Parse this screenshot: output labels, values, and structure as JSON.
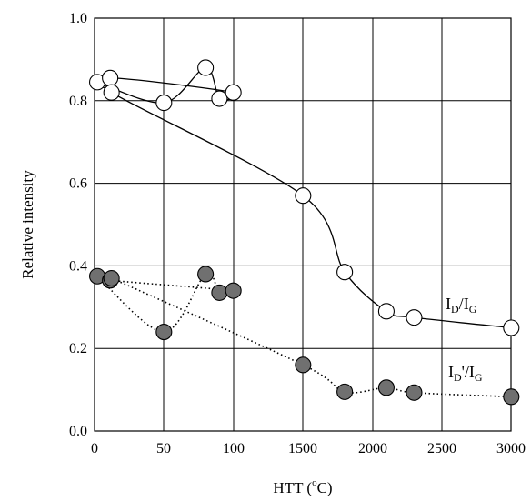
{
  "chart_data": {
    "type": "line",
    "title": "",
    "xlabel": {
      "main": "HTT (",
      "sup": "o",
      "tail": "C)"
    },
    "ylabel": "Relative intensity",
    "ylim": [
      0.0,
      1.0
    ],
    "yticks": [
      "0.0",
      "0.2",
      "0.4",
      "0.6",
      "0.8",
      "1.0"
    ],
    "xtick_labels": [
      "0",
      "50",
      "100",
      "1500",
      "2000",
      "2500",
      "3000"
    ],
    "grid": true,
    "x_scale": "broken: 0–100 then 1000–3000",
    "series": [
      {
        "name": "ID/IG",
        "label": {
          "a": "I",
          "a_sub": "D",
          "slash": "/",
          "b": "I",
          "b_sub": "G"
        },
        "marker": "open-circle",
        "line": "solid",
        "marker_fill": "#ffffff",
        "points": [
          {
            "x": 2,
            "y": 0.845
          },
          {
            "x": 50,
            "y": 0.795
          },
          {
            "x": 80,
            "y": 0.88
          },
          {
            "x": 90,
            "y": 0.805
          },
          {
            "x": 100,
            "y": 0.82
          },
          {
            "x": 110,
            "y": 0.855
          },
          {
            "x": 120,
            "y": 0.82
          },
          {
            "x": 1500,
            "y": 0.57
          },
          {
            "x": 1800,
            "y": 0.385
          },
          {
            "x": 2100,
            "y": 0.29
          },
          {
            "x": 2300,
            "y": 0.275
          },
          {
            "x": 3000,
            "y": 0.25
          }
        ]
      },
      {
        "name": "ID'/IG",
        "label": {
          "a": "I",
          "a_sub": "D",
          "slash": "'/",
          "b": "I",
          "b_sub": "G"
        },
        "marker": "filled-circle",
        "line": "dotted",
        "marker_fill": "#707070",
        "points": [
          {
            "x": 2,
            "y": 0.375
          },
          {
            "x": 50,
            "y": 0.24
          },
          {
            "x": 80,
            "y": 0.38
          },
          {
            "x": 90,
            "y": 0.335
          },
          {
            "x": 100,
            "y": 0.34
          },
          {
            "x": 110,
            "y": 0.365
          },
          {
            "x": 120,
            "y": 0.37
          },
          {
            "x": 1500,
            "y": 0.16
          },
          {
            "x": 1800,
            "y": 0.095
          },
          {
            "x": 2100,
            "y": 0.105
          },
          {
            "x": 2300,
            "y": 0.093
          },
          {
            "x": 3000,
            "y": 0.083
          }
        ]
      }
    ]
  }
}
